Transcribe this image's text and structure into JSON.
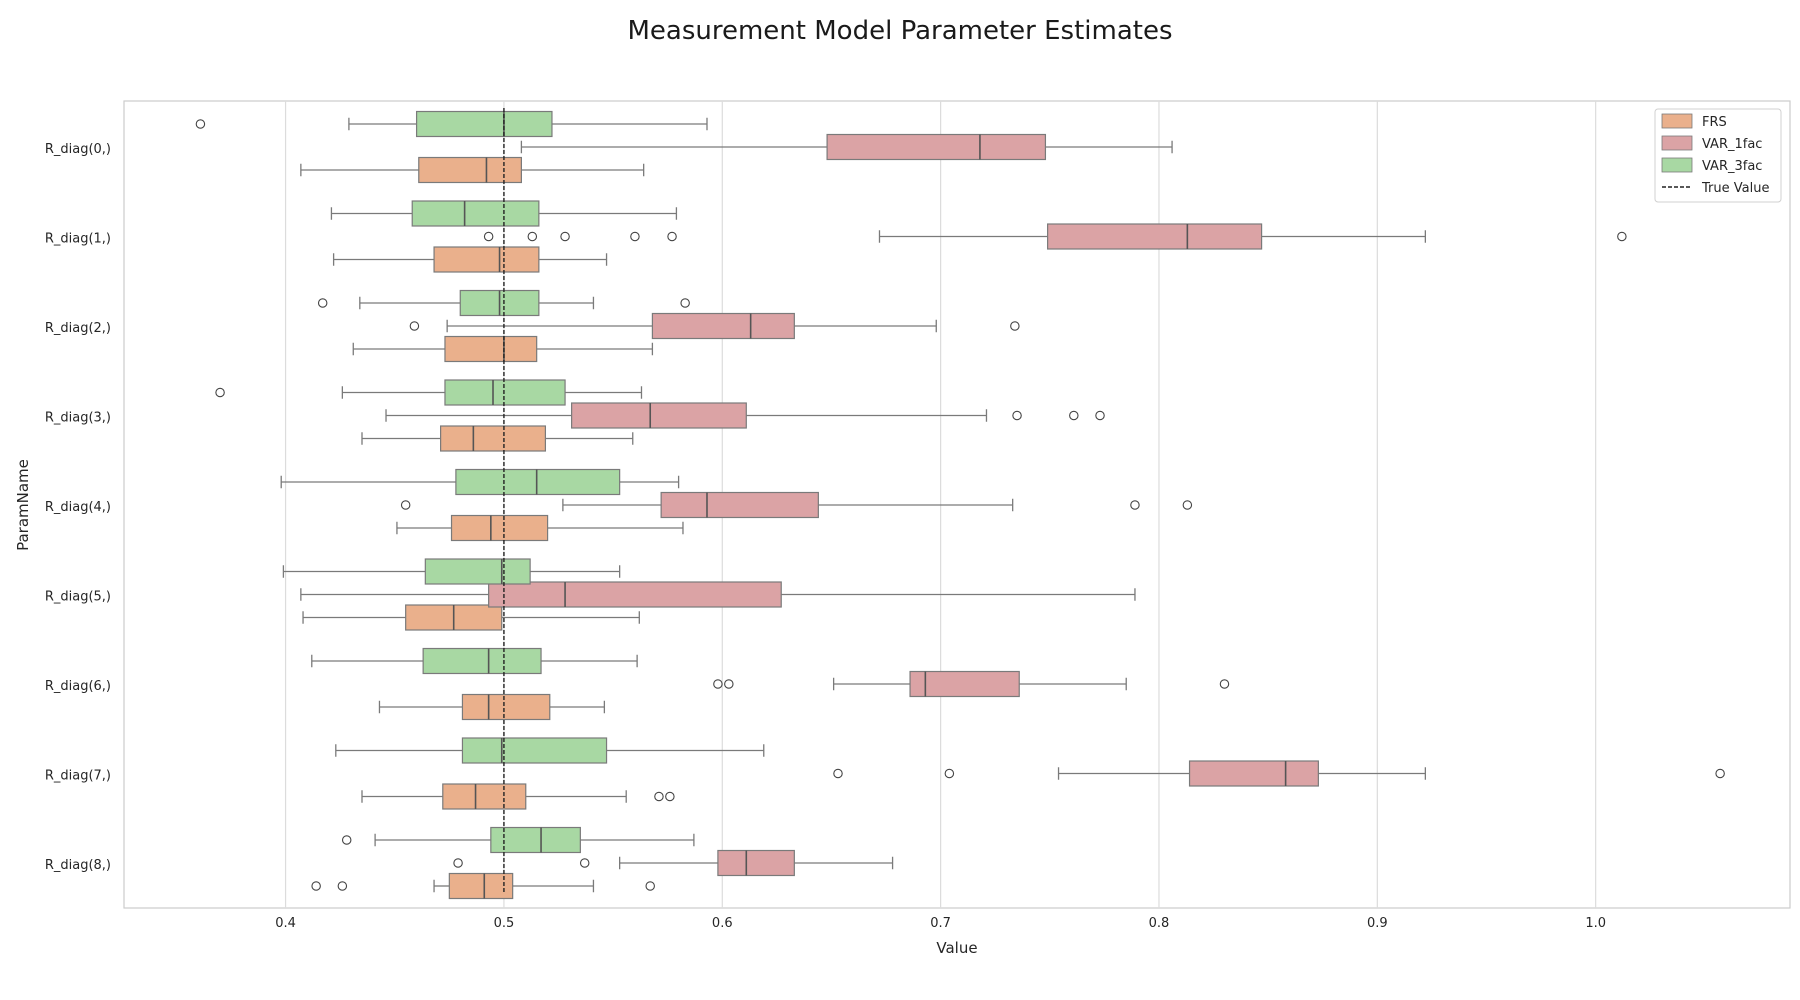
{
  "chart_data": {
    "type": "boxplot",
    "orientation": "horizontal",
    "title": "Measurement Model Parameter Estimates",
    "xlabel": "Value",
    "ylabel": "ParamName",
    "xlim": [
      0.326,
      1.089
    ],
    "xticks": [
      0.4,
      0.5,
      0.6,
      0.7,
      0.8,
      0.9,
      1.0
    ],
    "xtick_labels": [
      "0.4",
      "0.5",
      "0.6",
      "0.7",
      "0.8",
      "0.9",
      "1.0"
    ],
    "grid": "vertical",
    "legend_position": "top-right",
    "reference_line": {
      "label": "True Value",
      "value": 0.5,
      "style": "dashed",
      "color": "#222222"
    },
    "categories": [
      "R_diag(0,)",
      "R_diag(1,)",
      "R_diag(2,)",
      "R_diag(3,)",
      "R_diag(4,)",
      "R_diag(5,)",
      "R_diag(6,)",
      "R_diag(7,)",
      "R_diag(8,)"
    ],
    "series": [
      {
        "name": "FRS",
        "color": "#eab08c",
        "boxes": [
          {
            "whislo": 0.407,
            "q1": 0.461,
            "med": 0.492,
            "q3": 0.508,
            "whishi": 0.564,
            "fliers": []
          },
          {
            "whislo": 0.422,
            "q1": 0.468,
            "med": 0.498,
            "q3": 0.516,
            "whishi": 0.547,
            "fliers": []
          },
          {
            "whislo": 0.431,
            "q1": 0.473,
            "med": 0.5,
            "q3": 0.515,
            "whishi": 0.568,
            "fliers": []
          },
          {
            "whislo": 0.435,
            "q1": 0.471,
            "med": 0.486,
            "q3": 0.519,
            "whishi": 0.559,
            "fliers": []
          },
          {
            "whislo": 0.451,
            "q1": 0.476,
            "med": 0.494,
            "q3": 0.52,
            "whishi": 0.582,
            "fliers": []
          },
          {
            "whislo": 0.408,
            "q1": 0.455,
            "med": 0.477,
            "q3": 0.499,
            "whishi": 0.562,
            "fliers": []
          },
          {
            "whislo": 0.443,
            "q1": 0.481,
            "med": 0.493,
            "q3": 0.521,
            "whishi": 0.546,
            "fliers": []
          },
          {
            "whislo": 0.435,
            "q1": 0.472,
            "med": 0.487,
            "q3": 0.51,
            "whishi": 0.556,
            "fliers": [
              0.571,
              0.576
            ]
          },
          {
            "whislo": 0.468,
            "q1": 0.475,
            "med": 0.491,
            "q3": 0.504,
            "whishi": 0.541,
            "fliers": [
              0.414,
              0.426,
              0.567
            ]
          }
        ]
      },
      {
        "name": "VAR_1fac",
        "color": "#dba3a5",
        "boxes": [
          {
            "whislo": 0.508,
            "q1": 0.648,
            "med": 0.718,
            "q3": 0.748,
            "whishi": 0.806,
            "fliers": []
          },
          {
            "whislo": 0.672,
            "q1": 0.749,
            "med": 0.813,
            "q3": 0.847,
            "whishi": 0.922,
            "fliers": [
              0.493,
              0.513,
              0.528,
              0.56,
              0.577,
              1.012
            ]
          },
          {
            "whislo": 0.474,
            "q1": 0.568,
            "med": 0.613,
            "q3": 0.633,
            "whishi": 0.698,
            "fliers": [
              0.459,
              0.734
            ]
          },
          {
            "whislo": 0.446,
            "q1": 0.531,
            "med": 0.567,
            "q3": 0.611,
            "whishi": 0.721,
            "fliers": [
              0.735,
              0.761,
              0.773
            ]
          },
          {
            "whislo": 0.527,
            "q1": 0.572,
            "med": 0.593,
            "q3": 0.644,
            "whishi": 0.733,
            "fliers": [
              0.455,
              0.789,
              0.813
            ]
          },
          {
            "whislo": 0.407,
            "q1": 0.493,
            "med": 0.528,
            "q3": 0.627,
            "whishi": 0.789,
            "fliers": []
          },
          {
            "whislo": 0.651,
            "q1": 0.686,
            "med": 0.693,
            "q3": 0.736,
            "whishi": 0.785,
            "fliers": [
              0.598,
              0.603,
              0.83
            ]
          },
          {
            "whislo": 0.754,
            "q1": 0.814,
            "med": 0.858,
            "q3": 0.873,
            "whishi": 0.922,
            "fliers": [
              0.653,
              0.704,
              1.057
            ]
          },
          {
            "whislo": 0.553,
            "q1": 0.598,
            "med": 0.611,
            "q3": 0.633,
            "whishi": 0.678,
            "fliers": [
              0.479,
              0.537
            ]
          }
        ]
      },
      {
        "name": "VAR_3fac",
        "color": "#a8d8a3",
        "boxes": [
          {
            "whislo": 0.429,
            "q1": 0.46,
            "med": 0.5,
            "q3": 0.522,
            "whishi": 0.593,
            "fliers": [
              0.361
            ]
          },
          {
            "whislo": 0.421,
            "q1": 0.458,
            "med": 0.482,
            "q3": 0.516,
            "whishi": 0.579,
            "fliers": []
          },
          {
            "whislo": 0.434,
            "q1": 0.48,
            "med": 0.498,
            "q3": 0.516,
            "whishi": 0.541,
            "fliers": [
              0.417,
              0.583
            ]
          },
          {
            "whislo": 0.426,
            "q1": 0.473,
            "med": 0.495,
            "q3": 0.528,
            "whishi": 0.563,
            "fliers": [
              0.37
            ]
          },
          {
            "whislo": 0.398,
            "q1": 0.478,
            "med": 0.515,
            "q3": 0.553,
            "whishi": 0.58,
            "fliers": []
          },
          {
            "whislo": 0.399,
            "q1": 0.464,
            "med": 0.499,
            "q3": 0.512,
            "whishi": 0.553,
            "fliers": []
          },
          {
            "whislo": 0.412,
            "q1": 0.463,
            "med": 0.493,
            "q3": 0.517,
            "whishi": 0.561,
            "fliers": []
          },
          {
            "whislo": 0.423,
            "q1": 0.481,
            "med": 0.499,
            "q3": 0.547,
            "whishi": 0.619,
            "fliers": []
          },
          {
            "whislo": 0.441,
            "q1": 0.494,
            "med": 0.517,
            "q3": 0.535,
            "whishi": 0.587,
            "fliers": [
              0.428
            ]
          }
        ]
      }
    ]
  }
}
